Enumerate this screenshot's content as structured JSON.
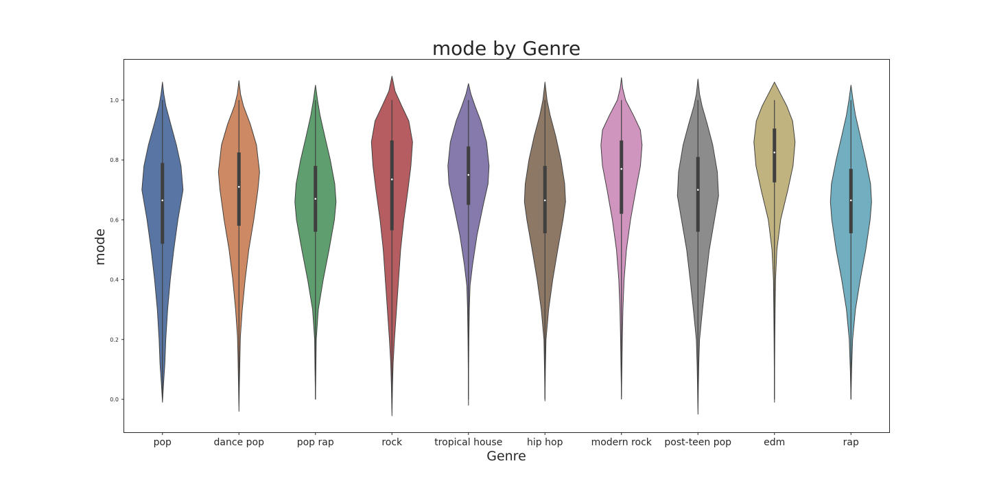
{
  "chart_data": {
    "type": "violin",
    "title": "mode by Genre",
    "xlabel": "Genre",
    "ylabel": "mode",
    "ylim": [
      -0.11,
      1.135
    ],
    "yticks": [
      "0.0",
      "0.2",
      "0.4",
      "0.6",
      "0.8",
      "1.0"
    ],
    "grid": false,
    "legend": "none",
    "categories": [
      "pop",
      "dance pop",
      "pop rap",
      "rock",
      "tropical house",
      "hip hop",
      "modern rock",
      "post-teen pop",
      "edm",
      "rap"
    ],
    "series": [
      {
        "category": "pop",
        "color": "#5875a4",
        "min": 0.0,
        "q1": 0.52,
        "median": 0.665,
        "q3": 0.79,
        "max": 1.0,
        "y_extent": [
          -0.01,
          1.06
        ],
        "density": [
          [
            -0.01,
            0.0
          ],
          [
            0.05,
            0.05
          ],
          [
            0.12,
            0.12
          ],
          [
            0.2,
            0.16
          ],
          [
            0.3,
            0.25
          ],
          [
            0.4,
            0.38
          ],
          [
            0.5,
            0.55
          ],
          [
            0.6,
            0.75
          ],
          [
            0.7,
            1.0
          ],
          [
            0.78,
            0.9
          ],
          [
            0.85,
            0.68
          ],
          [
            0.92,
            0.4
          ],
          [
            0.98,
            0.17
          ],
          [
            1.02,
            0.07
          ],
          [
            1.06,
            0.0
          ]
        ]
      },
      {
        "category": "dance pop",
        "color": "#cc8963",
        "min": 0.0,
        "q1": 0.58,
        "median": 0.71,
        "q3": 0.825,
        "max": 1.0,
        "y_extent": [
          -0.04,
          1.065
        ],
        "density": [
          [
            -0.04,
            0.0
          ],
          [
            0.05,
            0.02
          ],
          [
            0.15,
            0.05
          ],
          [
            0.21,
            0.07
          ],
          [
            0.3,
            0.16
          ],
          [
            0.4,
            0.3
          ],
          [
            0.5,
            0.48
          ],
          [
            0.6,
            0.72
          ],
          [
            0.7,
            0.92
          ],
          [
            0.76,
            1.0
          ],
          [
            0.85,
            0.85
          ],
          [
            0.92,
            0.55
          ],
          [
            0.98,
            0.22
          ],
          [
            1.02,
            0.08
          ],
          [
            1.065,
            0.0
          ]
        ]
      },
      {
        "category": "pop rap",
        "color": "#5f9e6e",
        "min": 0.0,
        "q1": 0.56,
        "median": 0.67,
        "q3": 0.78,
        "max": 1.0,
        "y_extent": [
          0.0,
          1.05
        ],
        "density": [
          [
            0.0,
            0.0
          ],
          [
            0.1,
            0.02
          ],
          [
            0.2,
            0.04
          ],
          [
            0.3,
            0.14
          ],
          [
            0.4,
            0.38
          ],
          [
            0.5,
            0.66
          ],
          [
            0.6,
            0.92
          ],
          [
            0.66,
            1.0
          ],
          [
            0.72,
            0.94
          ],
          [
            0.8,
            0.72
          ],
          [
            0.88,
            0.45
          ],
          [
            0.95,
            0.22
          ],
          [
            1.0,
            0.1
          ],
          [
            1.05,
            0.0
          ]
        ]
      },
      {
        "category": "rock",
        "color": "#b55d60",
        "min": 0.0,
        "q1": 0.565,
        "median": 0.735,
        "q3": 0.865,
        "max": 1.0,
        "y_extent": [
          -0.055,
          1.08
        ],
        "density": [
          [
            -0.055,
            0.0
          ],
          [
            0.05,
            0.03
          ],
          [
            0.12,
            0.06
          ],
          [
            0.2,
            0.12
          ],
          [
            0.3,
            0.22
          ],
          [
            0.4,
            0.32
          ],
          [
            0.5,
            0.42
          ],
          [
            0.6,
            0.58
          ],
          [
            0.7,
            0.78
          ],
          [
            0.78,
            0.92
          ],
          [
            0.86,
            1.0
          ],
          [
            0.93,
            0.82
          ],
          [
            0.98,
            0.48
          ],
          [
            1.03,
            0.15
          ],
          [
            1.08,
            0.0
          ]
        ]
      },
      {
        "category": "tropical house",
        "color": "#857aab",
        "min": 0.0,
        "q1": 0.65,
        "median": 0.75,
        "q3": 0.845,
        "max": 1.0,
        "y_extent": [
          -0.02,
          1.055
        ],
        "density": [
          [
            -0.02,
            0.0
          ],
          [
            0.1,
            0.01
          ],
          [
            0.2,
            0.02
          ],
          [
            0.3,
            0.04
          ],
          [
            0.38,
            0.08
          ],
          [
            0.45,
            0.2
          ],
          [
            0.55,
            0.42
          ],
          [
            0.65,
            0.72
          ],
          [
            0.72,
            0.95
          ],
          [
            0.78,
            1.0
          ],
          [
            0.86,
            0.88
          ],
          [
            0.93,
            0.6
          ],
          [
            0.98,
            0.32
          ],
          [
            1.02,
            0.12
          ],
          [
            1.055,
            0.0
          ]
        ]
      },
      {
        "category": "hip hop",
        "color": "#8d7866",
        "min": 0.0,
        "q1": 0.555,
        "median": 0.665,
        "q3": 0.78,
        "max": 1.0,
        "y_extent": [
          -0.005,
          1.06
        ],
        "density": [
          [
            -0.005,
            0.0
          ],
          [
            0.1,
            0.02
          ],
          [
            0.2,
            0.05
          ],
          [
            0.3,
            0.18
          ],
          [
            0.4,
            0.38
          ],
          [
            0.5,
            0.62
          ],
          [
            0.6,
            0.88
          ],
          [
            0.66,
            1.0
          ],
          [
            0.72,
            0.96
          ],
          [
            0.8,
            0.78
          ],
          [
            0.88,
            0.52
          ],
          [
            0.95,
            0.25
          ],
          [
            1.0,
            0.1
          ],
          [
            1.06,
            0.0
          ]
        ]
      },
      {
        "category": "modern rock",
        "color": "#d095bf",
        "min": 0.0,
        "q1": 0.62,
        "median": 0.77,
        "q3": 0.865,
        "max": 1.0,
        "y_extent": [
          0.01,
          1.075
        ],
        "density": [
          [
            0.01,
            0.0
          ],
          [
            0.1,
            0.02
          ],
          [
            0.2,
            0.04
          ],
          [
            0.3,
            0.07
          ],
          [
            0.4,
            0.13
          ],
          [
            0.5,
            0.24
          ],
          [
            0.6,
            0.44
          ],
          [
            0.7,
            0.7
          ],
          [
            0.78,
            0.92
          ],
          [
            0.85,
            1.0
          ],
          [
            0.9,
            0.92
          ],
          [
            0.95,
            0.58
          ],
          [
            1.0,
            0.2
          ],
          [
            1.04,
            0.06
          ],
          [
            1.075,
            0.0
          ]
        ]
      },
      {
        "category": "post-teen pop",
        "color": "#8c8c8c",
        "min": 0.0,
        "q1": 0.56,
        "median": 0.7,
        "q3": 0.81,
        "max": 1.0,
        "y_extent": [
          -0.05,
          1.07
        ],
        "density": [
          [
            -0.05,
            0.0
          ],
          [
            0.05,
            0.02
          ],
          [
            0.12,
            0.04
          ],
          [
            0.2,
            0.08
          ],
          [
            0.3,
            0.22
          ],
          [
            0.4,
            0.38
          ],
          [
            0.5,
            0.55
          ],
          [
            0.6,
            0.8
          ],
          [
            0.68,
            1.0
          ],
          [
            0.76,
            0.94
          ],
          [
            0.85,
            0.72
          ],
          [
            0.92,
            0.45
          ],
          [
            0.98,
            0.2
          ],
          [
            1.02,
            0.08
          ],
          [
            1.07,
            0.0
          ]
        ]
      },
      {
        "category": "edm",
        "color": "#c1b37f",
        "min": 0.0,
        "q1": 0.725,
        "median": 0.825,
        "q3": 0.905,
        "max": 1.0,
        "y_extent": [
          -0.01,
          1.06
        ],
        "density": [
          [
            -0.01,
            0.0
          ],
          [
            0.1,
            0.01
          ],
          [
            0.2,
            0.02
          ],
          [
            0.3,
            0.03
          ],
          [
            0.4,
            0.05
          ],
          [
            0.5,
            0.12
          ],
          [
            0.6,
            0.3
          ],
          [
            0.7,
            0.65
          ],
          [
            0.78,
            0.9
          ],
          [
            0.86,
            1.0
          ],
          [
            0.93,
            0.88
          ],
          [
            0.98,
            0.6
          ],
          [
            1.02,
            0.3
          ],
          [
            1.06,
            0.0
          ]
        ]
      },
      {
        "category": "rap",
        "color": "#71aec0",
        "min": 0.0,
        "q1": 0.555,
        "median": 0.665,
        "q3": 0.77,
        "max": 1.0,
        "y_extent": [
          0.0,
          1.05
        ],
        "density": [
          [
            0.0,
            0.0
          ],
          [
            0.1,
            0.03
          ],
          [
            0.2,
            0.08
          ],
          [
            0.3,
            0.22
          ],
          [
            0.4,
            0.45
          ],
          [
            0.5,
            0.72
          ],
          [
            0.6,
            0.93
          ],
          [
            0.66,
            1.0
          ],
          [
            0.72,
            0.95
          ],
          [
            0.8,
            0.72
          ],
          [
            0.88,
            0.45
          ],
          [
            0.95,
            0.22
          ],
          [
            1.0,
            0.1
          ],
          [
            1.05,
            0.0
          ]
        ]
      }
    ]
  }
}
